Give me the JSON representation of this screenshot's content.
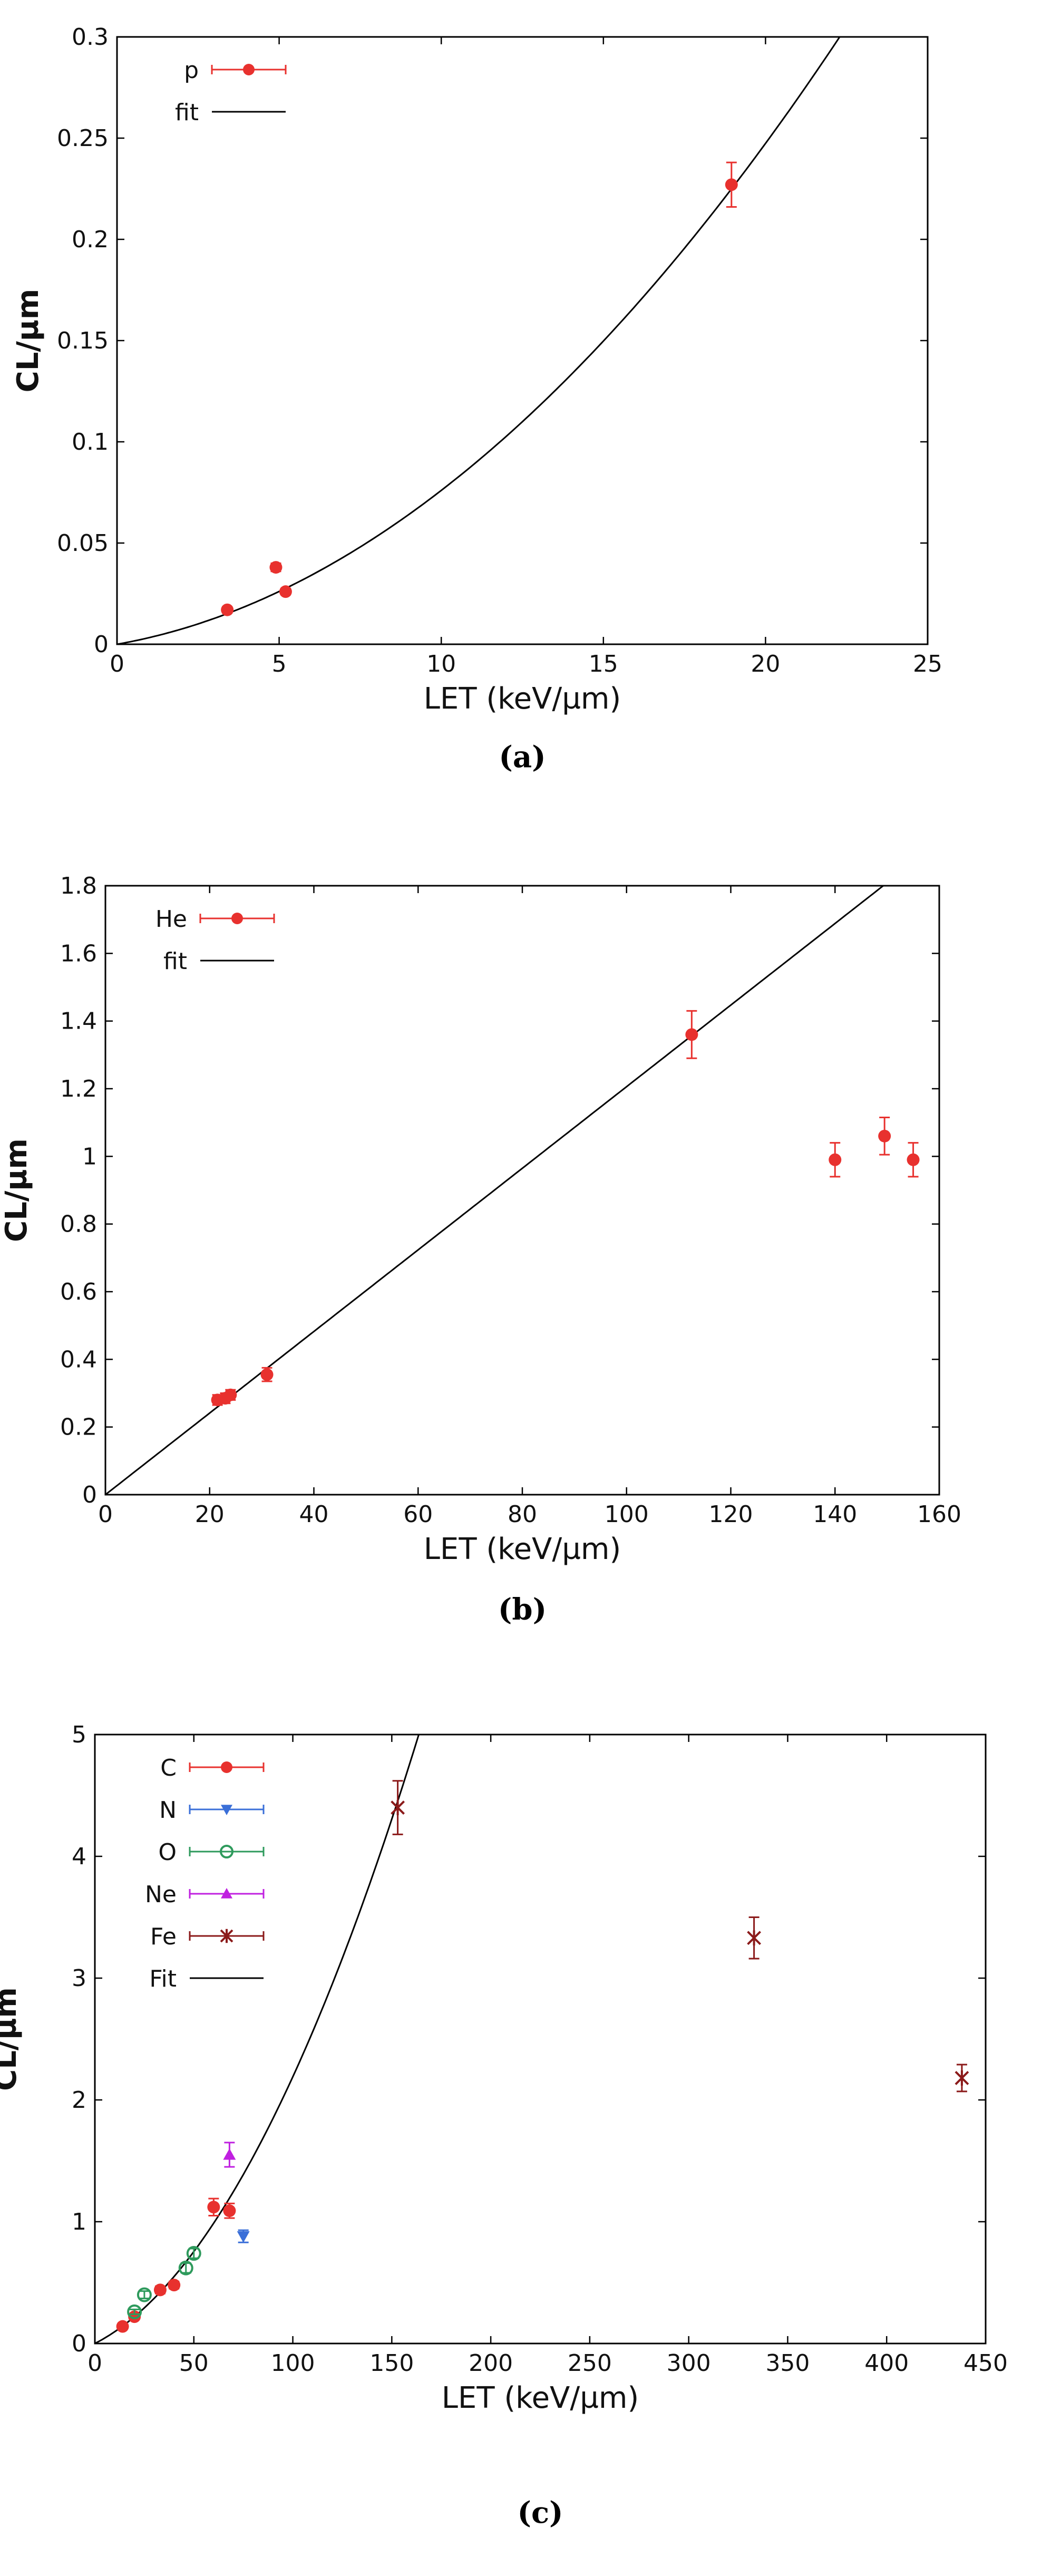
{
  "chart_data": [
    {
      "type": "scatter",
      "panel_label": "(a)",
      "xlabel": "LET (keV/µm)",
      "ylabel": "CL/µm",
      "xlim": [
        0,
        25
      ],
      "ylim": [
        0,
        0.3
      ],
      "xticks": [
        0,
        5,
        10,
        15,
        20,
        25
      ],
      "yticks": [
        0,
        0.05,
        0.1,
        0.15,
        0.2,
        0.25,
        0.3
      ],
      "xtick_labels": [
        "0",
        "5",
        "10",
        "15",
        "20",
        "25"
      ],
      "ytick_labels": [
        "0",
        "0.05",
        "0.1",
        "0.15",
        "0.2",
        "0.25",
        "0.3"
      ],
      "legend_position": "top-left",
      "series": [
        {
          "name": "p",
          "color": "#e8312e",
          "marker": "circle",
          "points": [
            {
              "x": 3.4,
              "y": 0.017,
              "err": 0.0015
            },
            {
              "x": 4.9,
              "y": 0.038,
              "err": 0.002
            },
            {
              "x": 5.2,
              "y": 0.026,
              "err": 0.0015
            },
            {
              "x": 18.95,
              "y": 0.227,
              "err": 0.011
            }
          ]
        }
      ],
      "fit": {
        "name": "fit",
        "color": "#000000",
        "model": "quadratic",
        "a": 0.000477,
        "b": 0.00283,
        "xmax": 25
      }
    },
    {
      "type": "scatter",
      "panel_label": "(b)",
      "xlabel": "LET (keV/µm)",
      "ylabel": "CL/µm",
      "xlim": [
        0,
        160
      ],
      "ylim": [
        0,
        1.8
      ],
      "xticks": [
        0,
        20,
        40,
        60,
        80,
        100,
        120,
        140,
        160
      ],
      "yticks": [
        0,
        0.2,
        0.4,
        0.6,
        0.8,
        1,
        1.2,
        1.4,
        1.6,
        1.8
      ],
      "xtick_labels": [
        "0",
        "20",
        "40",
        "60",
        "80",
        "100",
        "120",
        "140",
        "160"
      ],
      "ytick_labels": [
        "0",
        "0.2",
        "0.4",
        "0.6",
        "0.8",
        "1",
        "1.2",
        "1.4",
        "1.6",
        "1.8"
      ],
      "legend_position": "top-left",
      "series": [
        {
          "name": "He",
          "color": "#e8312e",
          "marker": "circle",
          "points": [
            {
              "x": 21.5,
              "y": 0.28,
              "err": 0.015
            },
            {
              "x": 23.0,
              "y": 0.285,
              "err": 0.015
            },
            {
              "x": 24.0,
              "y": 0.295,
              "err": 0.015
            },
            {
              "x": 31.0,
              "y": 0.355,
              "err": 0.02
            },
            {
              "x": 112.5,
              "y": 1.36,
              "err": 0.07
            },
            {
              "x": 140.0,
              "y": 0.99,
              "err": 0.05
            },
            {
              "x": 149.5,
              "y": 1.06,
              "err": 0.055
            },
            {
              "x": 155.0,
              "y": 0.99,
              "err": 0.05
            }
          ]
        }
      ],
      "fit": {
        "name": "fit",
        "color": "#000000",
        "model": "linear",
        "a": 0.0,
        "b": 0.01206,
        "xmax": 160
      }
    },
    {
      "type": "scatter",
      "panel_label": "(c)",
      "xlabel": "LET (keV/µm)",
      "ylabel": "CL/µm",
      "xlim": [
        0,
        450
      ],
      "ylim": [
        0,
        5
      ],
      "xticks": [
        0,
        50,
        100,
        150,
        200,
        250,
        300,
        350,
        400,
        450
      ],
      "yticks": [
        0,
        1,
        2,
        3,
        4,
        5
      ],
      "xtick_labels": [
        "0",
        "50",
        "100",
        "150",
        "200",
        "250",
        "300",
        "350",
        "400",
        "450"
      ],
      "ytick_labels": [
        "0",
        "1",
        "2",
        "3",
        "4",
        "5"
      ],
      "legend_position": "top-left",
      "series": [
        {
          "name": "C",
          "color": "#e8312e",
          "marker": "circle",
          "points": [
            {
              "x": 14,
              "y": 0.14,
              "err": 0.02
            },
            {
              "x": 20,
              "y": 0.22,
              "err": 0.02
            },
            {
              "x": 33,
              "y": 0.44,
              "err": 0.03
            },
            {
              "x": 40,
              "y": 0.48,
              "err": 0.03
            },
            {
              "x": 60,
              "y": 1.12,
              "err": 0.07
            },
            {
              "x": 68,
              "y": 1.09,
              "err": 0.06
            }
          ]
        },
        {
          "name": "N",
          "color": "#3a6fd8",
          "marker": "triangle-down",
          "points": [
            {
              "x": 75,
              "y": 0.88,
              "err": 0.05
            }
          ]
        },
        {
          "name": "O",
          "color": "#2e9a5c",
          "marker": "circle-open",
          "points": [
            {
              "x": 20,
              "y": 0.26,
              "err": 0.02
            },
            {
              "x": 25,
              "y": 0.4,
              "err": 0.03
            },
            {
              "x": 46,
              "y": 0.62,
              "err": 0.04
            },
            {
              "x": 50,
              "y": 0.74,
              "err": 0.04
            }
          ]
        },
        {
          "name": "Ne",
          "color": "#c020e0",
          "marker": "triangle-up",
          "points": [
            {
              "x": 68,
              "y": 1.55,
              "err": 0.1
            }
          ]
        },
        {
          "name": "Fe",
          "color": "#8b1a1a",
          "marker": "star",
          "points": [
            {
              "x": 153,
              "y": 4.4,
              "err": 0.22
            },
            {
              "x": 333,
              "y": 3.33,
              "err": 0.17
            },
            {
              "x": 438,
              "y": 2.18,
              "err": 0.11
            }
          ]
        }
      ],
      "fit": {
        "name": "Fit",
        "color": "#000000",
        "model": "quadratic",
        "a": 0.000136,
        "b": 0.0083,
        "xmax": 450
      }
    }
  ]
}
